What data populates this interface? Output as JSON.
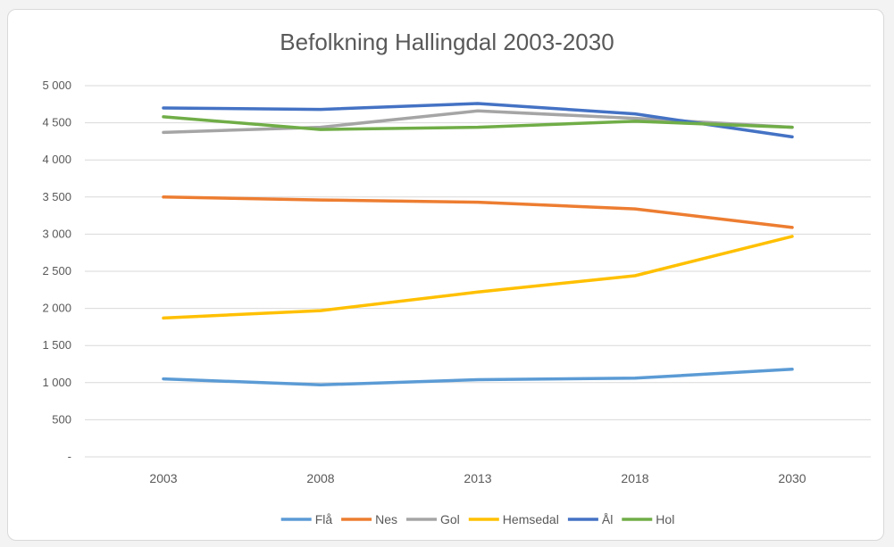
{
  "chart_data": {
    "type": "line",
    "title": "Befolkning Hallingdal 2003-2030",
    "xlabel": "",
    "ylabel": "",
    "categories": [
      "2003",
      "2008",
      "2013",
      "2018",
      "2030"
    ],
    "ylim": [
      0,
      5000
    ],
    "yticks": [
      0,
      500,
      1000,
      1500,
      2000,
      2500,
      3000,
      3500,
      4000,
      4500,
      5000
    ],
    "ytick_labels": [
      "-",
      "500",
      "1 000",
      "1 500",
      "2 000",
      "2 500",
      "3 000",
      "3 500",
      "4 000",
      "4 500",
      "5 000"
    ],
    "grid": true,
    "legend_position": "bottom",
    "series": [
      {
        "name": "Flå",
        "color": "#5b9bd5",
        "values": [
          1050,
          970,
          1040,
          1060,
          1180
        ]
      },
      {
        "name": "Nes",
        "color": "#ed7d31",
        "values": [
          3500,
          3460,
          3430,
          3340,
          3090
        ]
      },
      {
        "name": "Gol",
        "color": "#a5a5a5",
        "values": [
          4370,
          4440,
          4660,
          4560,
          4440
        ]
      },
      {
        "name": "Hemsedal",
        "color": "#ffc000",
        "values": [
          1870,
          1970,
          2220,
          2440,
          2970
        ]
      },
      {
        "name": "Ål",
        "color": "#4472c4",
        "values": [
          4700,
          4680,
          4760,
          4620,
          4310
        ]
      },
      {
        "name": "Hol",
        "color": "#70ad47",
        "values": [
          4580,
          4410,
          4440,
          4520,
          4440
        ]
      }
    ]
  }
}
